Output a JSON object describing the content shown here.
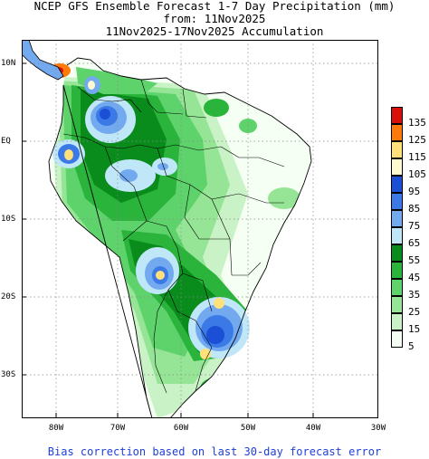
{
  "title": {
    "line1": "NCEP GFS Ensemble Forecast 1-7 Day Precipitation (mm)",
    "line2": "from: 11Nov2025",
    "line3": "11Nov2025-17Nov2025 Accumulation"
  },
  "axes": {
    "lat_labels": [
      "10N",
      "EQ",
      "10S",
      "20S",
      "30S"
    ],
    "lon_labels": [
      "80W",
      "70W",
      "60W",
      "50W",
      "40W",
      "30W"
    ]
  },
  "legend": {
    "entries": [
      {
        "label": "135",
        "color": "#d8100c"
      },
      {
        "label": "125",
        "color": "#ff7a08"
      },
      {
        "label": "115",
        "color": "#ffe07a"
      },
      {
        "label": "105",
        "color": "#fffad0"
      },
      {
        "label": "95",
        "color": "#1a4fd6"
      },
      {
        "label": "85",
        "color": "#3b7ae6"
      },
      {
        "label": "75",
        "color": "#73a9ef"
      },
      {
        "label": "65",
        "color": "#c0e7f8"
      },
      {
        "label": "55",
        "color": "#0a8c1c"
      },
      {
        "label": "45",
        "color": "#2ab43c"
      },
      {
        "label": "35",
        "color": "#5fd36b"
      },
      {
        "label": "25",
        "color": "#96e596"
      },
      {
        "label": "15",
        "color": "#c9f3c6"
      },
      {
        "label": "5",
        "color": "#f6fff4"
      }
    ]
  },
  "footer": "Bias correction based on last 30-day forecast error"
}
